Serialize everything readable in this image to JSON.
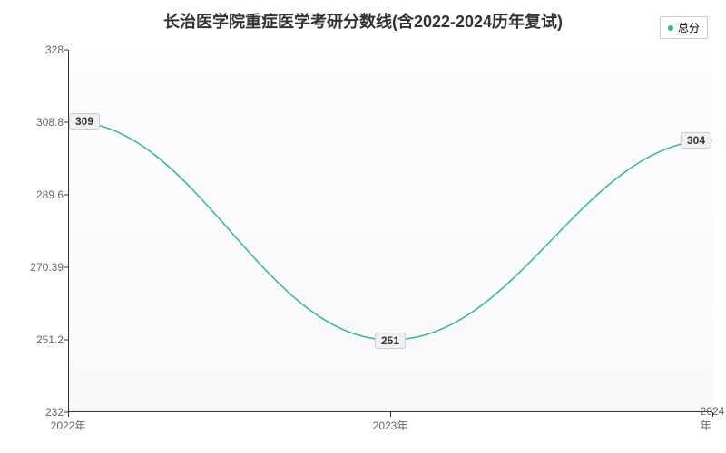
{
  "chart": {
    "type": "line",
    "title": "长治医学院重症医学考研分数线(含2022-2024历年复试)",
    "title_fontsize": 18,
    "title_color": "#333333",
    "background_color": "#ffffff",
    "plot_bg_top": "#fdfdfd",
    "plot_bg_bottom": "#f8f8f8",
    "line_color": "#2db89a",
    "line_width": 1.5,
    "legend": {
      "label": "总分",
      "dot_color": "#2db89a",
      "border_color": "#cccccc"
    },
    "x_labels": [
      "2022年",
      "2023年",
      "2024年"
    ],
    "y_ticks": [
      232,
      251.2,
      270.39,
      289.6,
      308.8,
      328
    ],
    "ylim": [
      232,
      328
    ],
    "data_points": [
      {
        "x_label": "2022年",
        "value": 309,
        "label": "309"
      },
      {
        "x_label": "2023年",
        "value": 251,
        "label": "251"
      },
      {
        "x_label": "2024年",
        "value": 304,
        "label": "304"
      }
    ],
    "axis_color": "#333333",
    "tick_label_color": "#666666",
    "tick_label_fontsize": 12,
    "data_label_bg": "#f0f0f0",
    "data_label_border": "#cccccc"
  }
}
